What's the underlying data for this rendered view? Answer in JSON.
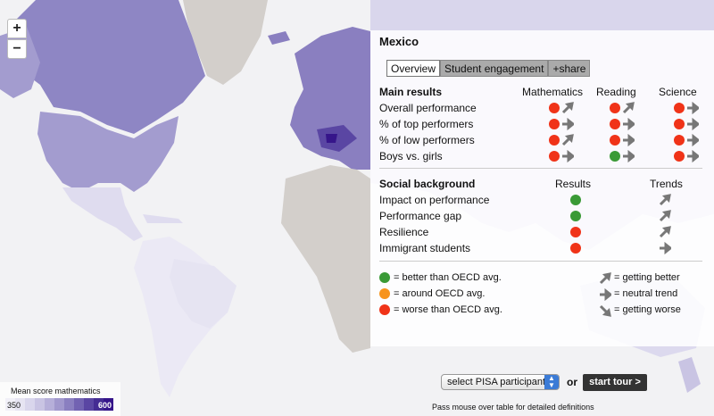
{
  "zoom": {
    "in_label": "+",
    "out_label": "−"
  },
  "panel": {
    "country": "Mexico",
    "tabs": [
      {
        "label": "Overview",
        "active": true
      },
      {
        "label": "Student engagement",
        "active": false
      },
      {
        "label": "+share",
        "active": false
      }
    ],
    "main_results": {
      "header": "Main results",
      "columns": [
        "Mathematics",
        "Reading",
        "Science"
      ],
      "rows": [
        {
          "label": "Overall performance",
          "cells": [
            [
              "red",
              "up"
            ],
            [
              "red",
              "up"
            ],
            [
              "red",
              "flat"
            ]
          ]
        },
        {
          "label": "% of top performers",
          "cells": [
            [
              "red",
              "flat"
            ],
            [
              "red",
              "flat"
            ],
            [
              "red",
              "flat"
            ]
          ]
        },
        {
          "label": "% of low performers",
          "cells": [
            [
              "red",
              "up"
            ],
            [
              "red",
              "flat"
            ],
            [
              "red",
              "flat"
            ]
          ]
        },
        {
          "label": "Boys vs. girls",
          "cells": [
            [
              "red",
              "flat"
            ],
            [
              "green",
              "flat"
            ],
            [
              "red",
              "flat"
            ]
          ]
        }
      ]
    },
    "social_background": {
      "header": "Social background",
      "columns": [
        "Results",
        "Trends"
      ],
      "rows": [
        {
          "label": "Impact on performance",
          "result": "green",
          "trend": "up"
        },
        {
          "label": "Performance gap",
          "result": "green",
          "trend": "up"
        },
        {
          "label": "Resilience",
          "result": "red",
          "trend": "up"
        },
        {
          "label": "Immigrant students",
          "result": "red",
          "trend": "flat"
        }
      ]
    },
    "legend": {
      "better": "= better than OECD avg.",
      "around": "= around OECD avg.",
      "worse": "= worse than OECD avg.",
      "getting_better": "= getting better",
      "neutral": "= neutral trend",
      "getting_worse": "= getting worse"
    }
  },
  "map_legend": {
    "title": "Mean score mathematics",
    "min": "350",
    "max": "600",
    "colors": [
      "#f1f0f8",
      "#e6e4f2",
      "#d9d6ec",
      "#c9c4e3",
      "#b6afd9",
      "#a198cd",
      "#8a7fc0",
      "#7263b2",
      "#5a46a3",
      "#442c93",
      "#36158a"
    ]
  },
  "controls": {
    "select_label": "select PISA participant",
    "or_label": "or",
    "tour_label": "start tour >",
    "hint": "Pass mouse over table for detailed definitions"
  },
  "colors": {
    "red": "#f03318",
    "green": "#3a9a36",
    "orange": "#f7941d",
    "purple_dark": "#36158a"
  }
}
